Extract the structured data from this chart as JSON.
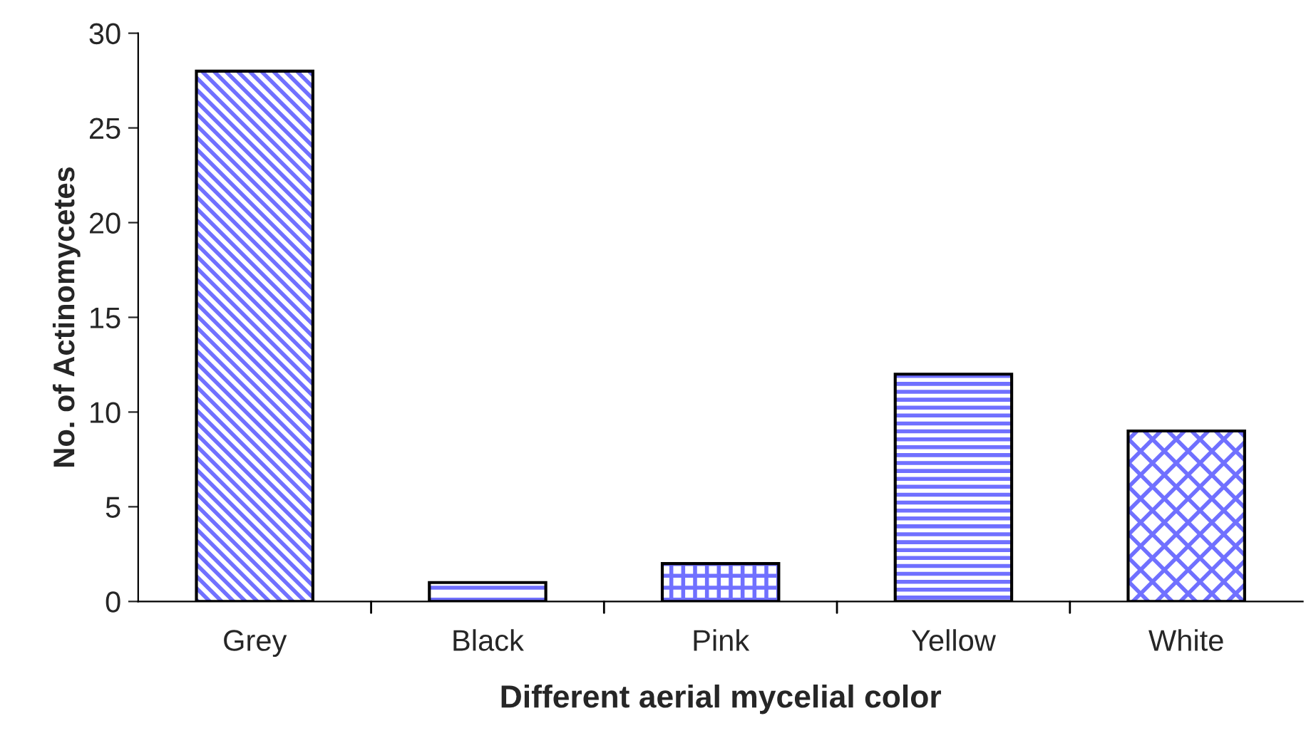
{
  "chart_data": {
    "type": "bar",
    "xlabel": "Different aerial mycelial color",
    "ylabel": "No. of Actinomycetes",
    "categories": [
      "Grey",
      "Black",
      "Pink",
      "Yellow",
      "White"
    ],
    "values": [
      28,
      1,
      2,
      12,
      9
    ],
    "color": "#7070ff",
    "ylim": [
      0,
      30
    ],
    "yticks": [
      0,
      5,
      10,
      15,
      20,
      25,
      30
    ],
    "grid": false
  }
}
